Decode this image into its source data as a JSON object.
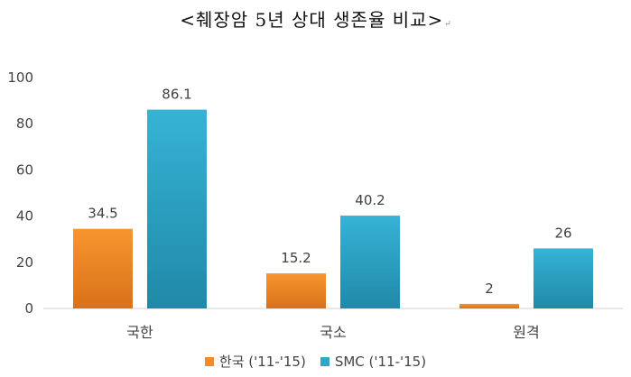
{
  "chart_data": {
    "type": "bar",
    "title": "<췌장암 5년 상대 생존율 비교>",
    "title_mark": "↵",
    "categories": [
      "국한",
      "국소",
      "원격"
    ],
    "series": [
      {
        "name": "한국 ('11-'15)",
        "values": [
          34.5,
          15.2,
          2
        ],
        "labels": [
          "34.5",
          "15.2",
          "2"
        ],
        "color": "#F28C28"
      },
      {
        "name": "SMC ('11-'15)",
        "values": [
          86.1,
          40.2,
          26
        ],
        "labels": [
          "86.1",
          "40.2",
          "26"
        ],
        "color": "#2FA8C8"
      }
    ],
    "ylim": [
      0,
      100
    ],
    "yticks": [
      0,
      20,
      40,
      60,
      80,
      100
    ],
    "ytick_labels": [
      "0",
      "20",
      "40",
      "60",
      "80",
      "100"
    ],
    "xlabel": "",
    "ylabel": "",
    "grid": false,
    "legend": "bottom-center"
  }
}
